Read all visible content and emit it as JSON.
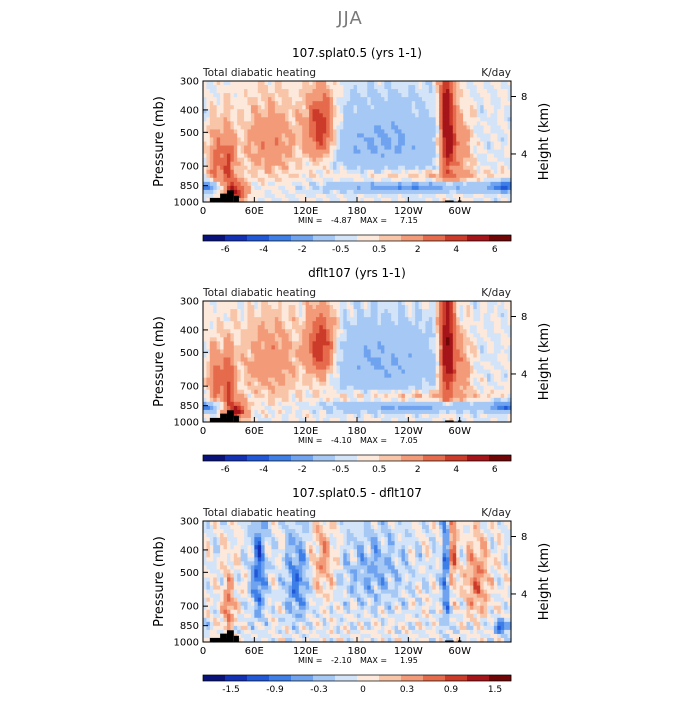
{
  "title": "JJA",
  "colors": {
    "full_palette": [
      "#08127a",
      "#1331b5",
      "#2158d8",
      "#3d7fe6",
      "#6fa3ef",
      "#a6c8f4",
      "#d4e4f8",
      "#fde9dc",
      "#f8c5a8",
      "#f39a79",
      "#e56b4c",
      "#cc3b29",
      "#a51418",
      "#700606"
    ],
    "diff_palette": [
      "#08127a",
      "#1331b5",
      "#2158d8",
      "#3d7fe6",
      "#6fa3ef",
      "#a6c8f4",
      "#d4e4f8",
      "#fde9dc",
      "#f8c5a8",
      "#f39a79",
      "#e56b4c",
      "#cc3b29",
      "#a51418",
      "#700606"
    ]
  },
  "chart_data": [
    {
      "type": "heatmap",
      "title": "107.splat0.5 (yrs 1-1)",
      "left_label": "Total diabatic heating",
      "units": "K/day",
      "xlabel": "",
      "ylabel": "Pressure (mb)",
      "y2label": "Height (km)",
      "x_ticks": [
        "0",
        "60E",
        "120E",
        "180",
        "120W",
        "60W"
      ],
      "y_ticks": [
        "300",
        "400",
        "500",
        "700",
        "850",
        "1000"
      ],
      "y2_ticks": [
        "8",
        "4"
      ],
      "stats": {
        "min_label": "MIN =",
        "min": "-4.87",
        "max_label": "MAX =",
        "max": "7.15"
      },
      "colorbar_labels": [
        "-6",
        "-4",
        "-2",
        "-0.5",
        "0.5",
        "2",
        "4",
        "6"
      ],
      "xlim": [
        0,
        360
      ],
      "ylim": [
        1000,
        300
      ],
      "features": [
        {
          "lon": 15,
          "p": 650,
          "value": 2.5,
          "lon_width": 6,
          "p_width": 260
        },
        {
          "lon": 30,
          "p": 700,
          "value": 3.0,
          "lon_width": 5,
          "p_width": 320
        },
        {
          "lon": 40,
          "p": 900,
          "value": 4.0,
          "lon_width": 8,
          "p_width": 120
        },
        {
          "lon": 80,
          "p": 550,
          "value": 1.8,
          "lon_width": 25,
          "p_width": 300
        },
        {
          "lon": 138,
          "p": 480,
          "value": 4.2,
          "lon_width": 12,
          "p_width": 230
        },
        {
          "lon": 210,
          "p": 550,
          "value": -2.2,
          "lon_width": 50,
          "p_width": 260
        },
        {
          "lon": 285,
          "p": 470,
          "value": 5.5,
          "lon_width": 6,
          "p_width": 400
        },
        {
          "lon": 300,
          "p": 580,
          "value": 2.2,
          "lon_width": 10,
          "p_width": 260
        },
        {
          "lon": 245,
          "p": 860,
          "value": -2.8,
          "lon_width": 60,
          "p_width": 70
        },
        {
          "lon": 250,
          "p": 780,
          "value": 1.2,
          "lon_width": 70,
          "p_width": 70
        },
        {
          "lon": 350,
          "p": 860,
          "value": -3.0,
          "lon_width": 12,
          "p_width": 70
        },
        {
          "lon": 5,
          "p": 860,
          "value": -2.0,
          "lon_width": 10,
          "p_width": 60
        }
      ]
    },
    {
      "type": "heatmap",
      "title": "dflt107 (yrs 1-1)",
      "left_label": "Total diabatic heating",
      "units": "K/day",
      "xlabel": "",
      "ylabel": "Pressure (mb)",
      "y2label": "Height (km)",
      "x_ticks": [
        "0",
        "60E",
        "120E",
        "180",
        "120W",
        "60W"
      ],
      "y_ticks": [
        "300",
        "400",
        "500",
        "700",
        "850",
        "1000"
      ],
      "y2_ticks": [
        "8",
        "4"
      ],
      "stats": {
        "min_label": "MIN =",
        "min": "-4.10",
        "max_label": "MAX =",
        "max": "7.05"
      },
      "colorbar_labels": [
        "-6",
        "-4",
        "-2",
        "-0.5",
        "0.5",
        "2",
        "4",
        "6"
      ],
      "xlim": [
        0,
        360
      ],
      "ylim": [
        1000,
        300
      ],
      "features": [
        {
          "lon": 15,
          "p": 650,
          "value": 2.5,
          "lon_width": 6,
          "p_width": 260
        },
        {
          "lon": 30,
          "p": 700,
          "value": 3.0,
          "lon_width": 5,
          "p_width": 320
        },
        {
          "lon": 40,
          "p": 900,
          "value": 4.0,
          "lon_width": 8,
          "p_width": 120
        },
        {
          "lon": 80,
          "p": 550,
          "value": 1.8,
          "lon_width": 25,
          "p_width": 300
        },
        {
          "lon": 138,
          "p": 480,
          "value": 4.2,
          "lon_width": 12,
          "p_width": 230
        },
        {
          "lon": 210,
          "p": 550,
          "value": -2.0,
          "lon_width": 50,
          "p_width": 260
        },
        {
          "lon": 285,
          "p": 470,
          "value": 5.8,
          "lon_width": 6,
          "p_width": 400
        },
        {
          "lon": 300,
          "p": 580,
          "value": 2.0,
          "lon_width": 10,
          "p_width": 260
        },
        {
          "lon": 245,
          "p": 860,
          "value": -2.4,
          "lon_width": 60,
          "p_width": 70
        },
        {
          "lon": 250,
          "p": 780,
          "value": 1.2,
          "lon_width": 70,
          "p_width": 70
        },
        {
          "lon": 350,
          "p": 860,
          "value": -2.6,
          "lon_width": 12,
          "p_width": 70
        },
        {
          "lon": 5,
          "p": 860,
          "value": -1.8,
          "lon_width": 10,
          "p_width": 60
        }
      ]
    },
    {
      "type": "heatmap",
      "title": "107.splat0.5 - dflt107",
      "left_label": "Total diabatic heating",
      "units": "K/day",
      "xlabel": "",
      "ylabel": "Pressure (mb)",
      "y2label": "Height (km)",
      "x_ticks": [
        "0",
        "60E",
        "120E",
        "180",
        "120W",
        "60W"
      ],
      "y_ticks": [
        "300",
        "400",
        "500",
        "700",
        "850",
        "1000"
      ],
      "y2_ticks": [
        "8",
        "4"
      ],
      "stats": {
        "min_label": "MIN =",
        "min": "-2.10",
        "max_label": "MAX =",
        "max": "1.95"
      },
      "colorbar_labels": [
        "-1.5",
        "-0.9",
        "-0.3",
        "0",
        "0.3",
        "0.9",
        "1.5"
      ],
      "xlim": [
        0,
        360
      ],
      "ylim": [
        1000,
        300
      ],
      "features": [
        {
          "lon": 285,
          "p": 480,
          "value": -1.6,
          "lon_width": 4,
          "p_width": 450
        },
        {
          "lon": 290,
          "p": 420,
          "value": 1.6,
          "lon_width": 4,
          "p_width": 300
        },
        {
          "lon": 65,
          "p": 500,
          "value": -1.2,
          "lon_width": 6,
          "p_width": 400
        },
        {
          "lon": 110,
          "p": 550,
          "value": -1.0,
          "lon_width": 10,
          "p_width": 350
        },
        {
          "lon": 140,
          "p": 450,
          "value": 0.8,
          "lon_width": 10,
          "p_width": 250
        },
        {
          "lon": 200,
          "p": 500,
          "value": -0.6,
          "lon_width": 30,
          "p_width": 300
        },
        {
          "lon": 320,
          "p": 550,
          "value": 0.9,
          "lon_width": 10,
          "p_width": 300
        },
        {
          "lon": 350,
          "p": 860,
          "value": -1.2,
          "lon_width": 8,
          "p_width": 80
        },
        {
          "lon": 30,
          "p": 700,
          "value": 1.0,
          "lon_width": 5,
          "p_width": 300
        }
      ]
    }
  ]
}
